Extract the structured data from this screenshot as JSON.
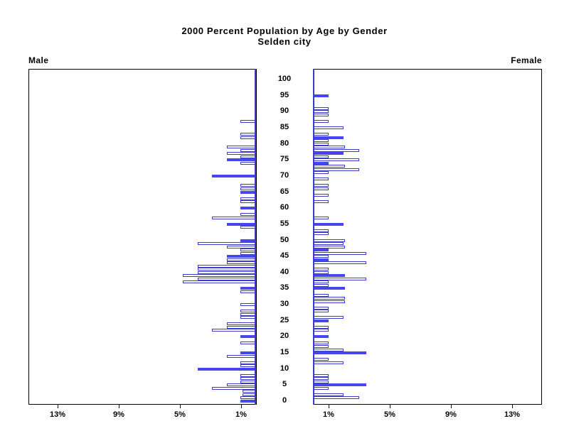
{
  "title": "2000 Percent Population by Age by Gender",
  "subtitle": "Selden city",
  "left_panel_label": "Male",
  "right_panel_label": "Female",
  "colors": {
    "bar_fill": "#4646EE",
    "bar_outline": "#3A3ACC",
    "axis": "#000000",
    "background": "#FFFFFF"
  },
  "chart_data": {
    "type": "bar",
    "subtype": "population-pyramid",
    "unit": "percent of population",
    "grid": false,
    "legend": "none",
    "age_axis": {
      "min": 0,
      "max": 100,
      "tick_step": 5,
      "tick_labels": [
        "0",
        "5",
        "10",
        "15",
        "20",
        "25",
        "30",
        "35",
        "40",
        "45",
        "50",
        "55",
        "60",
        "65",
        "70",
        "75",
        "80",
        "85",
        "90",
        "95",
        "100"
      ]
    },
    "percent_axis": {
      "max": 15,
      "ticks": [
        1,
        5,
        9,
        13
      ],
      "tick_labels": [
        "1%",
        "5%",
        "9%",
        "13%"
      ]
    },
    "series": [
      {
        "name": "Male",
        "side": "left",
        "points": [
          {
            "age": 87,
            "pct": 1.0,
            "solid": false
          },
          {
            "age": 83,
            "pct": 1.0,
            "solid": false
          },
          {
            "age": 82,
            "pct": 1.0,
            "solid": false
          },
          {
            "age": 79,
            "pct": 1.9,
            "solid": false
          },
          {
            "age": 78,
            "pct": 1.0,
            "solid": false
          },
          {
            "age": 77,
            "pct": 1.9,
            "solid": false
          },
          {
            "age": 76,
            "pct": 1.0,
            "solid": false
          },
          {
            "age": 75,
            "pct": 1.9,
            "solid": true
          },
          {
            "age": 74,
            "pct": 1.0,
            "solid": false
          },
          {
            "age": 70,
            "pct": 2.9,
            "solid": true
          },
          {
            "age": 67,
            "pct": 1.0,
            "solid": false
          },
          {
            "age": 66,
            "pct": 1.0,
            "solid": false
          },
          {
            "age": 65,
            "pct": 1.0,
            "solid": true
          },
          {
            "age": 63,
            "pct": 1.0,
            "solid": false
          },
          {
            "age": 62,
            "pct": 1.0,
            "solid": false
          },
          {
            "age": 60,
            "pct": 1.0,
            "solid": true
          },
          {
            "age": 58,
            "pct": 1.0,
            "solid": false
          },
          {
            "age": 57,
            "pct": 2.9,
            "solid": false
          },
          {
            "age": 55,
            "pct": 1.9,
            "solid": true
          },
          {
            "age": 54,
            "pct": 1.0,
            "solid": false
          },
          {
            "age": 50,
            "pct": 1.0,
            "solid": true
          },
          {
            "age": 49,
            "pct": 3.8,
            "solid": false
          },
          {
            "age": 48,
            "pct": 1.9,
            "solid": false
          },
          {
            "age": 47,
            "pct": 1.0,
            "solid": false
          },
          {
            "age": 46,
            "pct": 1.0,
            "solid": false
          },
          {
            "age": 45,
            "pct": 1.9,
            "solid": true
          },
          {
            "age": 44,
            "pct": 1.9,
            "solid": false
          },
          {
            "age": 43,
            "pct": 1.9,
            "solid": false
          },
          {
            "age": 42,
            "pct": 3.8,
            "solid": false
          },
          {
            "age": 41,
            "pct": 3.8,
            "solid": false
          },
          {
            "age": 40,
            "pct": 3.8,
            "solid": false
          },
          {
            "age": 39,
            "pct": 4.8,
            "solid": false
          },
          {
            "age": 38,
            "pct": 3.8,
            "solid": false
          },
          {
            "age": 37,
            "pct": 4.8,
            "solid": false
          },
          {
            "age": 35,
            "pct": 1.0,
            "solid": true
          },
          {
            "age": 34,
            "pct": 1.0,
            "solid": false
          },
          {
            "age": 30,
            "pct": 1.0,
            "solid": false
          },
          {
            "age": 28,
            "pct": 1.0,
            "solid": false
          },
          {
            "age": 27,
            "pct": 1.0,
            "solid": false
          },
          {
            "age": 26,
            "pct": 1.0,
            "solid": false
          },
          {
            "age": 24,
            "pct": 1.9,
            "solid": false
          },
          {
            "age": 23,
            "pct": 1.9,
            "solid": false
          },
          {
            "age": 22,
            "pct": 2.9,
            "solid": false
          },
          {
            "age": 20,
            "pct": 1.0,
            "solid": true
          },
          {
            "age": 18,
            "pct": 1.0,
            "solid": false
          },
          {
            "age": 15,
            "pct": 1.0,
            "solid": true
          },
          {
            "age": 14,
            "pct": 1.9,
            "solid": false
          },
          {
            "age": 12,
            "pct": 1.0,
            "solid": false
          },
          {
            "age": 11,
            "pct": 1.0,
            "solid": false
          },
          {
            "age": 10,
            "pct": 3.8,
            "solid": true
          },
          {
            "age": 8,
            "pct": 1.0,
            "solid": false
          },
          {
            "age": 7,
            "pct": 1.0,
            "solid": false
          },
          {
            "age": 6,
            "pct": 1.0,
            "solid": false
          },
          {
            "age": 5,
            "pct": 1.9,
            "solid": false
          },
          {
            "age": 4,
            "pct": 2.9,
            "solid": false
          },
          {
            "age": 3,
            "pct": 0.9,
            "solid": false
          },
          {
            "age": 2,
            "pct": 0.9,
            "solid": false
          },
          {
            "age": 1,
            "pct": 1.0,
            "solid": false
          },
          {
            "age": 0,
            "pct": 1.0,
            "solid": true
          }
        ]
      },
      {
        "name": "Female",
        "side": "right",
        "points": [
          {
            "age": 95,
            "pct": 1.0,
            "solid": true
          },
          {
            "age": 91,
            "pct": 1.0,
            "solid": false
          },
          {
            "age": 90,
            "pct": 1.0,
            "solid": false
          },
          {
            "age": 89,
            "pct": 1.0,
            "solid": false
          },
          {
            "age": 87,
            "pct": 1.0,
            "solid": false
          },
          {
            "age": 85,
            "pct": 2.0,
            "solid": false
          },
          {
            "age": 83,
            "pct": 1.0,
            "solid": false
          },
          {
            "age": 82,
            "pct": 2.0,
            "solid": true
          },
          {
            "age": 81,
            "pct": 1.0,
            "solid": false
          },
          {
            "age": 80,
            "pct": 1.0,
            "solid": false
          },
          {
            "age": 79,
            "pct": 2.1,
            "solid": false
          },
          {
            "age": 78,
            "pct": 3.0,
            "solid": false
          },
          {
            "age": 77,
            "pct": 2.0,
            "solid": true
          },
          {
            "age": 76,
            "pct": 1.0,
            "solid": false
          },
          {
            "age": 75,
            "pct": 3.0,
            "solid": false
          },
          {
            "age": 74,
            "pct": 1.0,
            "solid": true
          },
          {
            "age": 73,
            "pct": 2.1,
            "solid": false
          },
          {
            "age": 72,
            "pct": 3.0,
            "solid": false
          },
          {
            "age": 71,
            "pct": 1.0,
            "solid": false
          },
          {
            "age": 69,
            "pct": 1.0,
            "solid": false
          },
          {
            "age": 67,
            "pct": 1.0,
            "solid": false
          },
          {
            "age": 66,
            "pct": 1.0,
            "solid": false
          },
          {
            "age": 64,
            "pct": 1.0,
            "solid": false
          },
          {
            "age": 62,
            "pct": 1.0,
            "solid": false
          },
          {
            "age": 57,
            "pct": 1.0,
            "solid": false
          },
          {
            "age": 55,
            "pct": 2.0,
            "solid": true
          },
          {
            "age": 53,
            "pct": 1.0,
            "solid": false
          },
          {
            "age": 52,
            "pct": 1.0,
            "solid": false
          },
          {
            "age": 50,
            "pct": 2.1,
            "solid": false
          },
          {
            "age": 49,
            "pct": 2.0,
            "solid": false
          },
          {
            "age": 48,
            "pct": 2.1,
            "solid": false
          },
          {
            "age": 47,
            "pct": 1.0,
            "solid": true
          },
          {
            "age": 46,
            "pct": 3.5,
            "solid": false
          },
          {
            "age": 45,
            "pct": 1.0,
            "solid": false
          },
          {
            "age": 44,
            "pct": 1.0,
            "solid": true
          },
          {
            "age": 43,
            "pct": 3.5,
            "solid": false
          },
          {
            "age": 41,
            "pct": 1.0,
            "solid": false
          },
          {
            "age": 40,
            "pct": 1.0,
            "solid": false
          },
          {
            "age": 39,
            "pct": 2.1,
            "solid": true
          },
          {
            "age": 38,
            "pct": 3.5,
            "solid": false
          },
          {
            "age": 37,
            "pct": 1.0,
            "solid": false
          },
          {
            "age": 36,
            "pct": 1.0,
            "solid": false
          },
          {
            "age": 35,
            "pct": 2.1,
            "solid": true
          },
          {
            "age": 33,
            "pct": 1.0,
            "solid": false
          },
          {
            "age": 32,
            "pct": 2.1,
            "solid": false
          },
          {
            "age": 31,
            "pct": 2.1,
            "solid": false
          },
          {
            "age": 29,
            "pct": 1.0,
            "solid": false
          },
          {
            "age": 28,
            "pct": 1.0,
            "solid": false
          },
          {
            "age": 26,
            "pct": 2.0,
            "solid": false
          },
          {
            "age": 25,
            "pct": 1.0,
            "solid": true
          },
          {
            "age": 23,
            "pct": 1.0,
            "solid": false
          },
          {
            "age": 22,
            "pct": 1.0,
            "solid": false
          },
          {
            "age": 20,
            "pct": 1.0,
            "solid": true
          },
          {
            "age": 18,
            "pct": 1.0,
            "solid": false
          },
          {
            "age": 17,
            "pct": 1.0,
            "solid": false
          },
          {
            "age": 16,
            "pct": 2.0,
            "solid": false
          },
          {
            "age": 15,
            "pct": 3.5,
            "solid": true
          },
          {
            "age": 13,
            "pct": 1.0,
            "solid": false
          },
          {
            "age": 12,
            "pct": 2.0,
            "solid": false
          },
          {
            "age": 8,
            "pct": 1.0,
            "solid": false
          },
          {
            "age": 7,
            "pct": 1.0,
            "solid": false
          },
          {
            "age": 6,
            "pct": 1.0,
            "solid": false
          },
          {
            "age": 5,
            "pct": 3.5,
            "solid": true
          },
          {
            "age": 4,
            "pct": 1.0,
            "solid": false
          },
          {
            "age": 2,
            "pct": 2.0,
            "solid": false
          },
          {
            "age": 1,
            "pct": 3.0,
            "solid": false
          }
        ]
      }
    ]
  }
}
